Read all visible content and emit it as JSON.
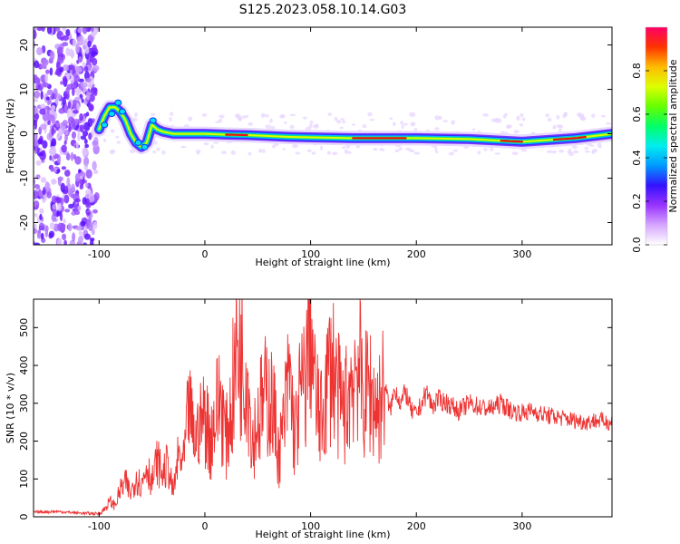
{
  "title": "S125.2023.058.10.14.G03",
  "chart_data": [
    {
      "type": "heatmap",
      "xlabel": "Height of straight line (km)",
      "ylabel": "Frequency (Hz)",
      "xlim": [
        -162,
        385
      ],
      "ylim": [
        -25,
        24
      ],
      "x_ticks": [
        -100,
        0,
        100,
        200,
        300
      ],
      "y_ticks": [
        -20,
        -10,
        0,
        10,
        20
      ],
      "noise_region_x": [
        -162,
        -102
      ],
      "ridge": {
        "x": [
          -100,
          -95,
          -90,
          -85,
          -80,
          -75,
          -70,
          -65,
          -60,
          -55,
          -50,
          -45,
          -40,
          -30,
          -20,
          0,
          20,
          40,
          60,
          80,
          100,
          140,
          200,
          250,
          300,
          350,
          385
        ],
        "y": [
          1,
          4,
          6,
          6,
          5,
          3,
          0,
          -2,
          -3,
          -2,
          2,
          1,
          0.5,
          0,
          0,
          0,
          -0.2,
          -0.3,
          -0.5,
          -0.7,
          -0.8,
          -1,
          -1,
          -1.2,
          -1.8,
          -1,
          0
        ]
      },
      "colorbar": {
        "label": "Normalized spectral amplitude",
        "range": [
          0,
          1
        ],
        "ticks": [
          0.0,
          0.2,
          0.4,
          0.6,
          0.8
        ],
        "colors": [
          "#ffffff",
          "#d6a6ff",
          "#9933ff",
          "#3311ff",
          "#0099ff",
          "#00eeee",
          "#00ff66",
          "#66ff00",
          "#ddff00",
          "#ffbb00",
          "#ff3300",
          "#ff0066"
        ]
      }
    },
    {
      "type": "line",
      "xlabel": "Height of straight line (km)",
      "ylabel": "SNR (10 * v/v)",
      "xlim": [
        -162,
        385
      ],
      "ylim": [
        0,
        575
      ],
      "x_ticks": [
        -100,
        0,
        100,
        200,
        300
      ],
      "y_ticks": [
        0,
        100,
        200,
        300,
        400,
        500
      ],
      "color": "#ee3333",
      "series": [
        {
          "x": [
            -162,
            -140,
            -120,
            -100,
            -95,
            -90,
            -85,
            -80,
            -75,
            -70,
            -65,
            -60,
            -55,
            -50,
            -45,
            -40,
            -35,
            -30,
            -25,
            -20,
            -15,
            -10,
            -5,
            0,
            5,
            10,
            15,
            20,
            25,
            30,
            35,
            40,
            45,
            50,
            55,
            60,
            65,
            70,
            75,
            80,
            85,
            90,
            95,
            98,
            100,
            102,
            105,
            110,
            115,
            120,
            125,
            130,
            135,
            140,
            145,
            150,
            155,
            160,
            165,
            170,
            175,
            180,
            185,
            190,
            195,
            200,
            205,
            210,
            215,
            220,
            230,
            240,
            250,
            260,
            270,
            280,
            290,
            300,
            310,
            320,
            330,
            340,
            350,
            360,
            370,
            385
          ],
          "y": [
            12,
            14,
            10,
            8,
            20,
            40,
            30,
            70,
            90,
            60,
            110,
            80,
            140,
            90,
            150,
            110,
            140,
            60,
            160,
            140,
            300,
            200,
            240,
            280,
            200,
            270,
            320,
            200,
            290,
            450,
            420,
            400,
            200,
            260,
            300,
            330,
            280,
            160,
            250,
            380,
            200,
            320,
            350,
            470,
            540,
            420,
            300,
            250,
            340,
            420,
            330,
            280,
            310,
            380,
            420,
            300,
            350,
            300,
            290,
            350,
            280,
            340,
            300,
            330,
            280,
            270,
            300,
            330,
            290,
            310,
            300,
            280,
            300,
            290,
            285,
            300,
            280,
            275,
            280,
            270,
            265,
            260,
            255,
            250,
            255,
            250
          ]
        }
      ]
    }
  ]
}
